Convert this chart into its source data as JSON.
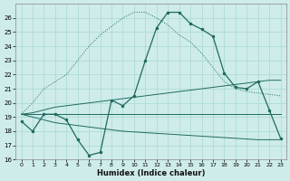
{
  "xlabel": "Humidex (Indice chaleur)",
  "xlim_min": -0.5,
  "xlim_max": 23.5,
  "ylim_min": 16,
  "ylim_max": 27,
  "yticks": [
    16,
    17,
    18,
    19,
    20,
    21,
    22,
    23,
    24,
    25,
    26
  ],
  "xticks": [
    0,
    1,
    2,
    3,
    4,
    5,
    6,
    7,
    8,
    9,
    10,
    11,
    12,
    13,
    14,
    15,
    16,
    17,
    18,
    19,
    20,
    21,
    22,
    23
  ],
  "bg_color": "#ceecea",
  "line_color": "#1f6b5e",
  "grid_color": "#a8d8d4",
  "main_y": [
    18.7,
    18.0,
    19.2,
    19.2,
    18.8,
    17.4,
    16.3,
    16.5,
    20.2,
    19.8,
    20.5,
    23.0,
    25.3,
    26.4,
    26.4,
    25.6,
    25.2,
    24.7,
    22.1,
    21.1,
    21.0,
    21.5,
    19.5,
    17.5
  ],
  "flat_upper_y": [
    19.2,
    19.2,
    19.2,
    19.2,
    19.2,
    19.2,
    19.2,
    19.2,
    19.2,
    19.2,
    19.2,
    19.2,
    19.2,
    19.2,
    19.2,
    19.2,
    19.2,
    19.2,
    19.2,
    19.2,
    19.2,
    19.2,
    19.2,
    19.2
  ],
  "diag_up_y": [
    19.2,
    19.3,
    19.5,
    19.7,
    19.8,
    19.9,
    20.0,
    20.1,
    20.2,
    20.3,
    20.4,
    20.5,
    20.6,
    20.7,
    20.8,
    20.9,
    21.0,
    21.1,
    21.2,
    21.3,
    21.4,
    21.5,
    21.6,
    21.6
  ],
  "diag_down_y": [
    19.2,
    19.0,
    18.8,
    18.6,
    18.5,
    18.4,
    18.3,
    18.2,
    18.1,
    18.0,
    17.95,
    17.9,
    17.85,
    17.8,
    17.75,
    17.7,
    17.65,
    17.6,
    17.55,
    17.5,
    17.45,
    17.4,
    17.4,
    17.4
  ],
  "dotted_up_y": [
    19.2,
    20.0,
    21.0,
    21.5,
    22.0,
    23.0,
    24.0,
    24.8,
    25.4,
    26.0,
    26.4,
    26.4,
    26.0,
    25.5,
    24.8,
    24.3,
    23.5,
    22.5,
    21.5,
    21.0,
    20.8,
    20.7,
    20.6,
    20.5
  ]
}
